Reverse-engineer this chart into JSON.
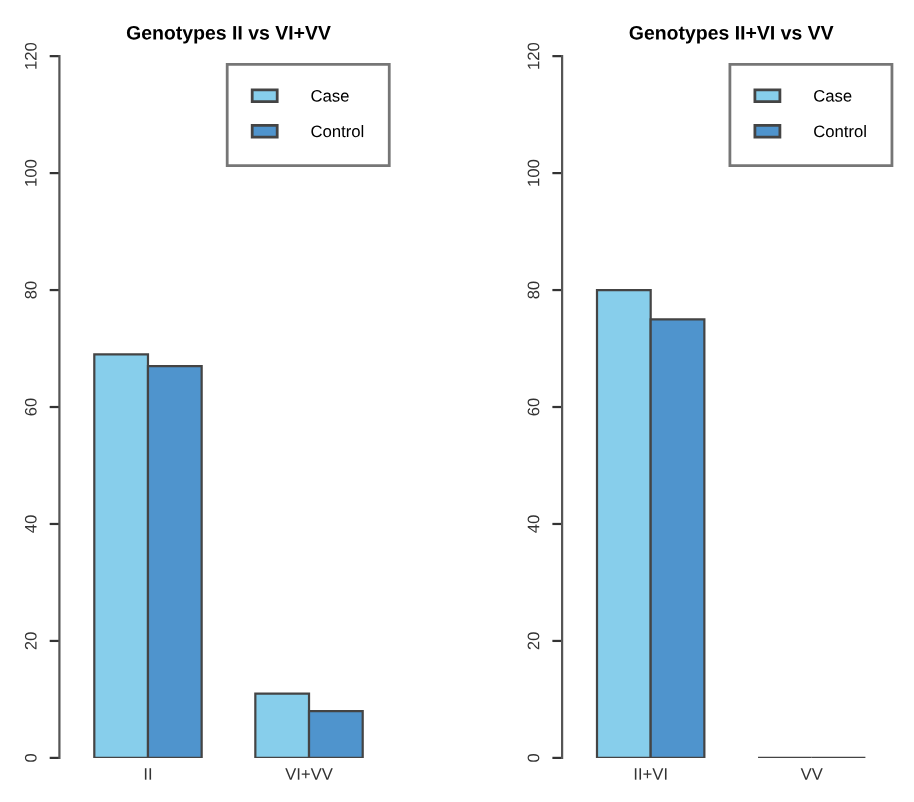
{
  "chart_data": [
    {
      "type": "bar",
      "title": "Genotypes II vs VI+VV",
      "categories": [
        "II",
        "VI+VV"
      ],
      "series": [
        {
          "name": "Case",
          "color": "#87ceeb",
          "values": [
            69,
            11
          ]
        },
        {
          "name": "Control",
          "color": "#4f94cd",
          "values": [
            67,
            8
          ]
        }
      ],
      "ylim": [
        0,
        120
      ],
      "yticks": [
        0,
        20,
        40,
        60,
        80,
        100,
        120
      ],
      "grid": false,
      "legend": "top right"
    },
    {
      "type": "bar",
      "title": "Genotypes II+VI vs VV",
      "categories": [
        "II+VI",
        "VV"
      ],
      "series": [
        {
          "name": "Case",
          "color": "#87ceeb",
          "values": [
            80,
            0
          ]
        },
        {
          "name": "Control",
          "color": "#4f94cd",
          "values": [
            75,
            0
          ]
        }
      ],
      "ylim": [
        0,
        120
      ],
      "yticks": [
        0,
        20,
        40,
        60,
        80,
        100,
        120
      ],
      "grid": false,
      "legend": "top right"
    }
  ]
}
